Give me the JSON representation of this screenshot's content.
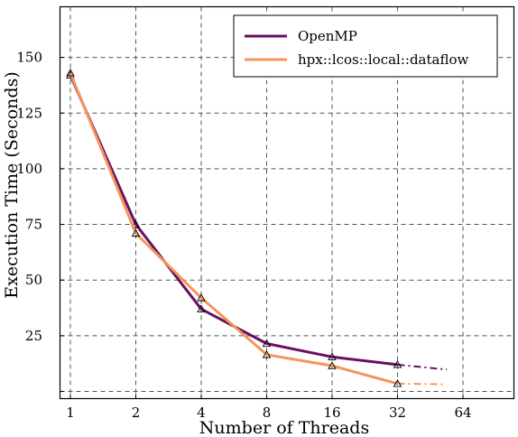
{
  "chart_data": {
    "type": "line",
    "title": "",
    "xlabel": "Number of Threads",
    "ylabel": "Execution Time (Seconds)",
    "x_scale": "log2",
    "x_ticks": [
      "1",
      "2",
      "4",
      "8",
      "16",
      "32",
      "64"
    ],
    "x_tick_values": [
      1,
      2,
      4,
      8,
      16,
      32,
      64
    ],
    "y_ticks": [
      "25",
      "50",
      "75",
      "100",
      "125",
      "150"
    ],
    "y_tick_values": [
      25,
      50,
      75,
      100,
      125,
      150
    ],
    "xlim": [
      1,
      64
    ],
    "ylim": [
      0,
      172
    ],
    "grid": true,
    "legend_position": "top-right",
    "series": [
      {
        "name": "OpenMP",
        "color": "#6a0f62",
        "x": [
          1,
          2,
          4,
          8,
          16,
          32
        ],
        "values": [
          142,
          75,
          37,
          21.5,
          15.5,
          12
        ],
        "extrapolated_x": [
          32,
          54
        ],
        "extrapolated_values": [
          12,
          9.8
        ],
        "marker": "triangle"
      },
      {
        "name": "hpx::lcos::local::dataflow",
        "color": "#f4955a",
        "x": [
          1,
          2,
          4,
          8,
          16,
          32
        ],
        "values": [
          143,
          71,
          42,
          16.5,
          11.5,
          3.5
        ],
        "extrapolated_x": [
          32,
          52
        ],
        "extrapolated_values": [
          3.5,
          3.2
        ],
        "marker": "triangle"
      }
    ]
  }
}
